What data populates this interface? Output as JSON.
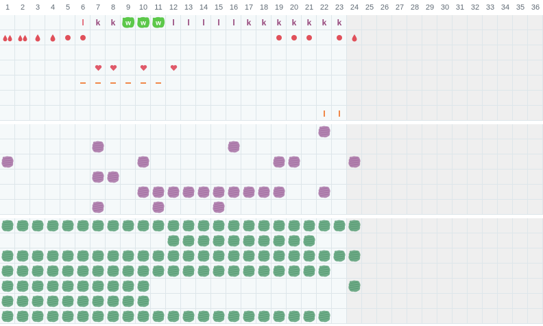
{
  "days": [
    "1",
    "2",
    "3",
    "4",
    "5",
    "6",
    "7",
    "8",
    "9",
    "10",
    "11",
    "12",
    "13",
    "14",
    "15",
    "16",
    "17",
    "18",
    "19",
    "20",
    "21",
    "22",
    "23",
    "24",
    "25",
    "26",
    "27",
    "28",
    "29",
    "30",
    "31",
    "32",
    "33",
    "34",
    "35",
    "36"
  ],
  "active_days": 23,
  "colors": {
    "red": "#e05a6a",
    "drop": "#e0505a",
    "purple": "#95457a",
    "green_badge": "#5cc84a",
    "orange": "#f0884a",
    "scribble_purple": "#9a5a96",
    "scribble_green": "#3f8f5f"
  },
  "sections": [
    {
      "name": "symptoms",
      "rows": 7,
      "marks": [
        {
          "row": 0,
          "day": 6,
          "icon": "letter-l-icon",
          "text": "l",
          "color": "red"
        },
        {
          "row": 0,
          "day": 7,
          "icon": "letter-k-icon",
          "text": "k",
          "color": "purple"
        },
        {
          "row": 0,
          "day": 8,
          "icon": "letter-k-icon",
          "text": "k",
          "color": "purple"
        },
        {
          "row": 0,
          "day": 9,
          "icon": "w-badge-icon",
          "text": "w",
          "color": "green_badge"
        },
        {
          "row": 0,
          "day": 10,
          "icon": "w-badge-icon",
          "text": "w",
          "color": "green_badge"
        },
        {
          "row": 0,
          "day": 11,
          "icon": "w-badge-icon",
          "text": "w",
          "color": "green_badge"
        },
        {
          "row": 0,
          "day": 12,
          "icon": "letter-l-icon",
          "text": "l",
          "color": "purple"
        },
        {
          "row": 0,
          "day": 13,
          "icon": "letter-l-icon",
          "text": "l",
          "color": "purple"
        },
        {
          "row": 0,
          "day": 14,
          "icon": "letter-l-icon",
          "text": "l",
          "color": "purple"
        },
        {
          "row": 0,
          "day": 15,
          "icon": "letter-l-icon",
          "text": "l",
          "color": "purple"
        },
        {
          "row": 0,
          "day": 16,
          "icon": "letter-l-icon",
          "text": "l",
          "color": "purple"
        },
        {
          "row": 0,
          "day": 17,
          "icon": "letter-k-icon",
          "text": "k",
          "color": "purple"
        },
        {
          "row": 0,
          "day": 18,
          "icon": "letter-k-icon",
          "text": "k",
          "color": "purple"
        },
        {
          "row": 0,
          "day": 19,
          "icon": "letter-k-icon",
          "text": "k",
          "color": "purple"
        },
        {
          "row": 0,
          "day": 20,
          "icon": "letter-k-icon",
          "text": "k",
          "color": "purple"
        },
        {
          "row": 0,
          "day": 21,
          "icon": "letter-k-icon",
          "text": "k",
          "color": "purple"
        },
        {
          "row": 0,
          "day": 22,
          "icon": "letter-k-icon",
          "text": "k",
          "color": "purple"
        },
        {
          "row": 0,
          "day": 23,
          "icon": "letter-k-icon",
          "text": "k",
          "color": "purple"
        },
        {
          "row": 1,
          "day": 1,
          "icon": "double-drop-icon",
          "color": "drop"
        },
        {
          "row": 1,
          "day": 2,
          "icon": "double-drop-icon",
          "color": "drop"
        },
        {
          "row": 1,
          "day": 3,
          "icon": "drop-icon",
          "color": "drop"
        },
        {
          "row": 1,
          "day": 4,
          "icon": "drop-icon",
          "color": "drop"
        },
        {
          "row": 1,
          "day": 5,
          "icon": "dot-icon",
          "color": "drop"
        },
        {
          "row": 1,
          "day": 6,
          "icon": "dot-icon",
          "color": "drop"
        },
        {
          "row": 1,
          "day": 19,
          "icon": "dot-icon",
          "color": "drop"
        },
        {
          "row": 1,
          "day": 20,
          "icon": "dot-icon",
          "color": "drop"
        },
        {
          "row": 1,
          "day": 21,
          "icon": "dot-icon",
          "color": "drop"
        },
        {
          "row": 1,
          "day": 23,
          "icon": "dot-icon",
          "color": "drop"
        },
        {
          "row": 1,
          "day": 24,
          "icon": "drop-icon",
          "color": "drop"
        },
        {
          "row": 3,
          "day": 7,
          "icon": "heart-icon",
          "color": "red"
        },
        {
          "row": 3,
          "day": 8,
          "icon": "heart-icon",
          "color": "red"
        },
        {
          "row": 3,
          "day": 10,
          "icon": "heart-icon",
          "color": "red"
        },
        {
          "row": 3,
          "day": 12,
          "icon": "heart-icon",
          "color": "red"
        },
        {
          "row": 4,
          "day": 6,
          "icon": "dash-icon",
          "color": "orange"
        },
        {
          "row": 4,
          "day": 7,
          "icon": "dash-icon",
          "color": "orange"
        },
        {
          "row": 4,
          "day": 8,
          "icon": "dash-icon",
          "color": "orange"
        },
        {
          "row": 4,
          "day": 9,
          "icon": "dash-icon",
          "color": "orange"
        },
        {
          "row": 4,
          "day": 10,
          "icon": "dash-icon",
          "color": "orange"
        },
        {
          "row": 4,
          "day": 11,
          "icon": "dash-icon",
          "color": "orange"
        },
        {
          "row": 6,
          "day": 22,
          "icon": "tick-icon",
          "color": "orange"
        },
        {
          "row": 6,
          "day": 23,
          "icon": "tick-icon",
          "color": "orange"
        }
      ]
    },
    {
      "name": "purple-activities",
      "rows": 6,
      "marks": [
        {
          "row": 0,
          "day": 22
        },
        {
          "row": 1,
          "day": 7
        },
        {
          "row": 1,
          "day": 16
        },
        {
          "row": 2,
          "day": 1
        },
        {
          "row": 2,
          "day": 10
        },
        {
          "row": 2,
          "day": 19
        },
        {
          "row": 2,
          "day": 20
        },
        {
          "row": 2,
          "day": 24
        },
        {
          "row": 3,
          "day": 7
        },
        {
          "row": 3,
          "day": 8
        },
        {
          "row": 4,
          "day": 10
        },
        {
          "row": 4,
          "day": 11
        },
        {
          "row": 4,
          "day": 12
        },
        {
          "row": 4,
          "day": 13
        },
        {
          "row": 4,
          "day": 14
        },
        {
          "row": 4,
          "day": 15
        },
        {
          "row": 4,
          "day": 16
        },
        {
          "row": 4,
          "day": 17
        },
        {
          "row": 4,
          "day": 18
        },
        {
          "row": 4,
          "day": 19
        },
        {
          "row": 4,
          "day": 22
        },
        {
          "row": 5,
          "day": 7
        },
        {
          "row": 5,
          "day": 11
        },
        {
          "row": 5,
          "day": 15
        }
      ]
    },
    {
      "name": "green-activities",
      "rows": 7,
      "row_ranges": [
        {
          "row": 0,
          "days": [
            [
              1,
              24
            ]
          ]
        },
        {
          "row": 1,
          "days": [
            [
              12,
              21
            ]
          ]
        },
        {
          "row": 2,
          "days": [
            [
              1,
              24
            ]
          ]
        },
        {
          "row": 3,
          "days": [
            [
              1,
              22
            ]
          ]
        },
        {
          "row": 4,
          "days": [
            [
              1,
              10
            ],
            [
              24,
              24
            ]
          ]
        },
        {
          "row": 5,
          "days": [
            [
              1,
              10
            ]
          ]
        },
        {
          "row": 6,
          "days": [
            [
              1,
              22
            ]
          ]
        }
      ]
    }
  ]
}
